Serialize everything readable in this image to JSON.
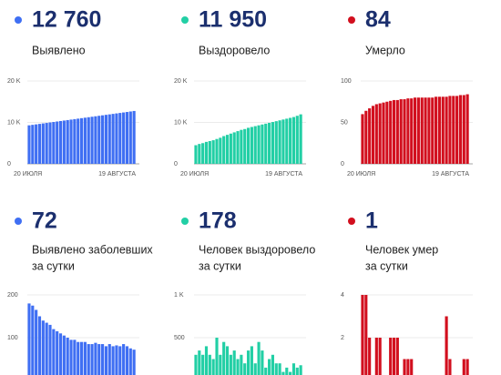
{
  "chart_data": [
    {
      "type": "bar",
      "stat": "12 760",
      "label": [
        "Выявлено"
      ],
      "color": "#3f6ff3",
      "categories": [
        "20 ИЮЛЯ",
        null,
        null,
        null,
        null,
        null,
        null,
        null,
        null,
        null,
        null,
        null,
        null,
        null,
        null,
        null,
        null,
        null,
        null,
        null,
        null,
        null,
        null,
        null,
        null,
        null,
        null,
        null,
        null,
        null,
        "19 АВГУСТА"
      ],
      "values": [
        9300,
        9415,
        9530,
        9645,
        9760,
        9875,
        9990,
        10105,
        10220,
        10335,
        10450,
        10565,
        10680,
        10795,
        10910,
        11025,
        11140,
        11255,
        11370,
        11485,
        11600,
        11715,
        11830,
        11945,
        12060,
        12175,
        12290,
        12405,
        12520,
        12640,
        12760
      ],
      "ylim": [
        0,
        20000
      ],
      "yticks": [
        0,
        {
          "value": 10000,
          "label": "10 K"
        },
        {
          "value": 20000,
          "label": "20 K"
        }
      ],
      "grid": true
    },
    {
      "type": "bar",
      "stat": "11 950",
      "label": [
        "Выздоровело"
      ],
      "color": "#22cfa5",
      "categories": [
        "20 ИЮЛЯ",
        null,
        null,
        null,
        null,
        null,
        null,
        null,
        null,
        null,
        null,
        null,
        null,
        null,
        null,
        null,
        null,
        null,
        null,
        null,
        null,
        null,
        null,
        null,
        null,
        null,
        null,
        null,
        null,
        null,
        "19 АВГУСТА"
      ],
      "values": [
        4500,
        4800,
        5000,
        5300,
        5500,
        5700,
        6000,
        6300,
        6700,
        7000,
        7300,
        7600,
        7900,
        8200,
        8400,
        8700,
        8900,
        9100,
        9300,
        9500,
        9700,
        9900,
        10100,
        10300,
        10500,
        10700,
        10900,
        11100,
        11300,
        11600,
        11950
      ],
      "ylim": [
        0,
        20000
      ],
      "yticks": [
        0,
        {
          "value": 10000,
          "label": "10 K"
        },
        {
          "value": 20000,
          "label": "20 K"
        }
      ],
      "grid": true
    },
    {
      "type": "bar",
      "stat": "84",
      "label": [
        "Умерло"
      ],
      "color": "#d20f1e",
      "categories": [
        "20 ИЮЛЯ",
        null,
        null,
        null,
        null,
        null,
        null,
        null,
        null,
        null,
        null,
        null,
        null,
        null,
        null,
        null,
        null,
        null,
        null,
        null,
        null,
        null,
        null,
        null,
        null,
        null,
        null,
        null,
        null,
        null,
        "19 АВГУСТА"
      ],
      "values": [
        60,
        64,
        67,
        70,
        72,
        73,
        74,
        75,
        76,
        77,
        77,
        78,
        78,
        79,
        79,
        80,
        80,
        80,
        80,
        80,
        80,
        81,
        81,
        81,
        81,
        82,
        82,
        82,
        83,
        83,
        84
      ],
      "ylim": [
        0,
        100
      ],
      "yticks": [
        0,
        50,
        100
      ],
      "grid": true
    },
    {
      "type": "bar",
      "stat": "72",
      "label": [
        "Выявлено заболевших",
        "за сутки"
      ],
      "color": "#3f6ff3",
      "values": [
        180,
        175,
        165,
        150,
        140,
        135,
        130,
        120,
        115,
        110,
        105,
        100,
        95,
        95,
        90,
        90,
        90,
        85,
        85,
        88,
        85,
        85,
        80,
        85,
        80,
        82,
        80,
        85,
        80,
        75,
        72
      ],
      "ylim": [
        0,
        200
      ],
      "yticks": [
        100,
        200
      ],
      "grid": true
    },
    {
      "type": "bar",
      "stat": "178",
      "label": [
        "Человек выздоровело",
        "за сутки"
      ],
      "color": "#22cfa5",
      "values": [
        300,
        350,
        300,
        400,
        300,
        250,
        500,
        300,
        450,
        400,
        300,
        350,
        250,
        300,
        200,
        350,
        400,
        200,
        450,
        350,
        150,
        250,
        300,
        200,
        200,
        100,
        150,
        100,
        200,
        150,
        178
      ],
      "ylim": [
        0,
        1000
      ],
      "yticks": [
        500,
        {
          "value": 1000,
          "label": "1 K"
        }
      ],
      "grid": true
    },
    {
      "type": "bar",
      "stat": "1",
      "label": [
        "Человек умер",
        "за сутки"
      ],
      "color": "#d20f1e",
      "values": [
        4,
        4,
        2,
        0,
        2,
        2,
        0,
        0,
        2,
        2,
        2,
        0,
        1,
        1,
        1,
        0,
        0,
        0,
        0,
        0,
        0,
        0,
        0,
        0,
        3,
        1,
        0,
        0,
        0,
        1,
        1
      ],
      "ylim": [
        0,
        4
      ],
      "yticks": [
        2,
        4
      ],
      "grid": true
    }
  ]
}
